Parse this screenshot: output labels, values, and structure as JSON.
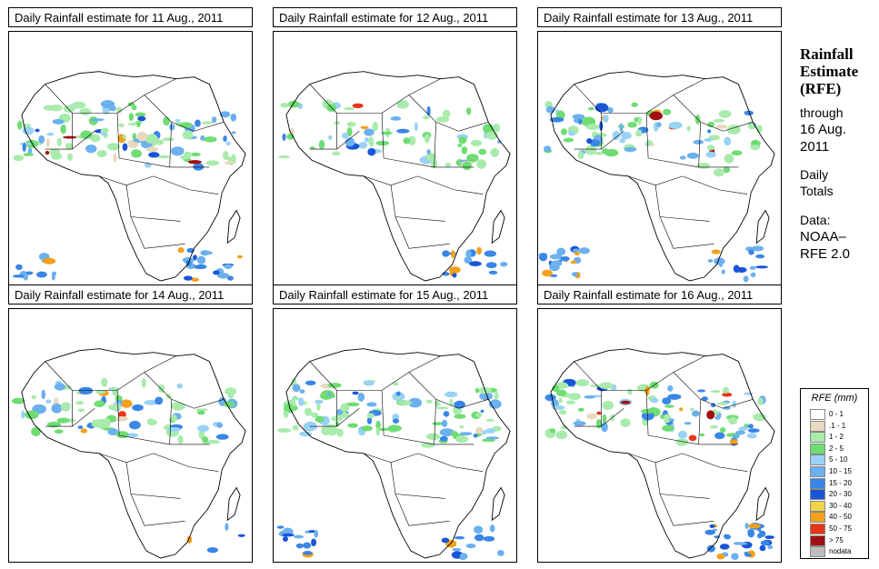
{
  "panels": [
    {
      "title": "Daily Rainfall estimate for  11 Aug., 2011",
      "intensity": 0.9,
      "south_band": 0.8
    },
    {
      "title": "Daily Rainfall estimate for  12 Aug., 2011",
      "intensity": 0.6,
      "south_band": 0.4
    },
    {
      "title": "Daily Rainfall estimate for  13 Aug., 2011",
      "intensity": 0.8,
      "south_band": 0.9
    },
    {
      "title": "Daily Rainfall estimate for  14 Aug., 2011",
      "intensity": 0.7,
      "south_band": 0.1
    },
    {
      "title": "Daily Rainfall estimate for  15 Aug., 2011",
      "intensity": 0.9,
      "south_band": 0.7
    },
    {
      "title": "Daily Rainfall estimate for  16 Aug., 2011",
      "intensity": 0.85,
      "south_band": 0.8
    }
  ],
  "side": {
    "heading": [
      "Rainfall",
      "Estimate",
      "(RFE)"
    ],
    "through": "through",
    "date": [
      "16 Aug.",
      "2011"
    ],
    "totals": [
      "Daily",
      "Totals"
    ],
    "data": [
      "Data:",
      "NOAA–",
      "RFE 2.0"
    ]
  },
  "legend": {
    "title": "RFE (mm)",
    "items": [
      {
        "label": "0 - 1",
        "color": "#ffffff"
      },
      {
        "label": ".1 - 1",
        "color": "#e8d9bf"
      },
      {
        "label": "1 - 2",
        "color": "#a9ebac"
      },
      {
        "label": "2 - 5",
        "color": "#6fdc74"
      },
      {
        "label": "5 - 10",
        "color": "#9ad2f5"
      },
      {
        "label": "10 - 15",
        "color": "#6cb0ee"
      },
      {
        "label": "15 - 20",
        "color": "#3a86e6"
      },
      {
        "label": "20 - 30",
        "color": "#1a55d8"
      },
      {
        "label": "30 - 40",
        "color": "#f2d34a"
      },
      {
        "label": "40 - 50",
        "color": "#f3a11a"
      },
      {
        "label": "50 - 75",
        "color": "#e8351a"
      },
      {
        "label": "> 75",
        "color": "#a01010"
      },
      {
        "label": "nodata",
        "color": "#bdbdbd"
      }
    ]
  }
}
